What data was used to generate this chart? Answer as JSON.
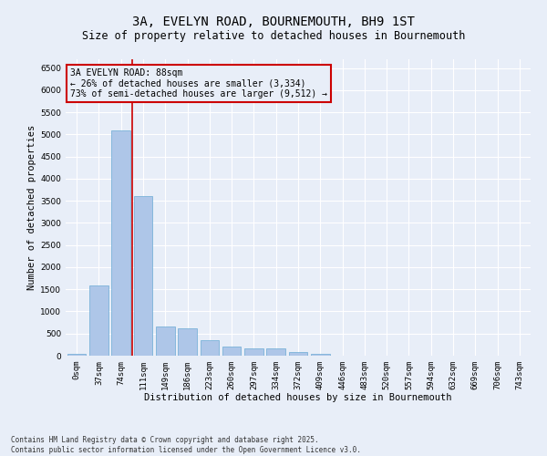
{
  "title": "3A, EVELYN ROAD, BOURNEMOUTH, BH9 1ST",
  "subtitle": "Size of property relative to detached houses in Bournemouth",
  "xlabel": "Distribution of detached houses by size in Bournemouth",
  "ylabel": "Number of detached properties",
  "bin_labels": [
    "0sqm",
    "37sqm",
    "74sqm",
    "111sqm",
    "149sqm",
    "186sqm",
    "223sqm",
    "260sqm",
    "297sqm",
    "334sqm",
    "372sqm",
    "409sqm",
    "446sqm",
    "483sqm",
    "520sqm",
    "557sqm",
    "594sqm",
    "632sqm",
    "669sqm",
    "706sqm",
    "743sqm"
  ],
  "bar_heights": [
    50,
    1580,
    5100,
    3600,
    650,
    620,
    360,
    210,
    175,
    160,
    80,
    40,
    0,
    0,
    0,
    0,
    0,
    0,
    0,
    0,
    0
  ],
  "bar_color": "#aec6e8",
  "bar_edgecolor": "#6aaad4",
  "background_color": "#e8eef8",
  "grid_color": "#ffffff",
  "vline_x": 2.5,
  "vline_color": "#cc0000",
  "annotation_text": "3A EVELYN ROAD: 88sqm\n← 26% of detached houses are smaller (3,334)\n73% of semi-detached houses are larger (9,512) →",
  "annotation_box_color": "#cc0000",
  "annotation_text_color": "#000000",
  "ylim": [
    0,
    6700
  ],
  "yticks": [
    0,
    500,
    1000,
    1500,
    2000,
    2500,
    3000,
    3500,
    4000,
    4500,
    5000,
    5500,
    6000,
    6500
  ],
  "footnote": "Contains HM Land Registry data © Crown copyright and database right 2025.\nContains public sector information licensed under the Open Government Licence v3.0.",
  "title_fontsize": 10,
  "subtitle_fontsize": 8.5,
  "axis_label_fontsize": 7.5,
  "tick_fontsize": 6.5,
  "annotation_fontsize": 7
}
